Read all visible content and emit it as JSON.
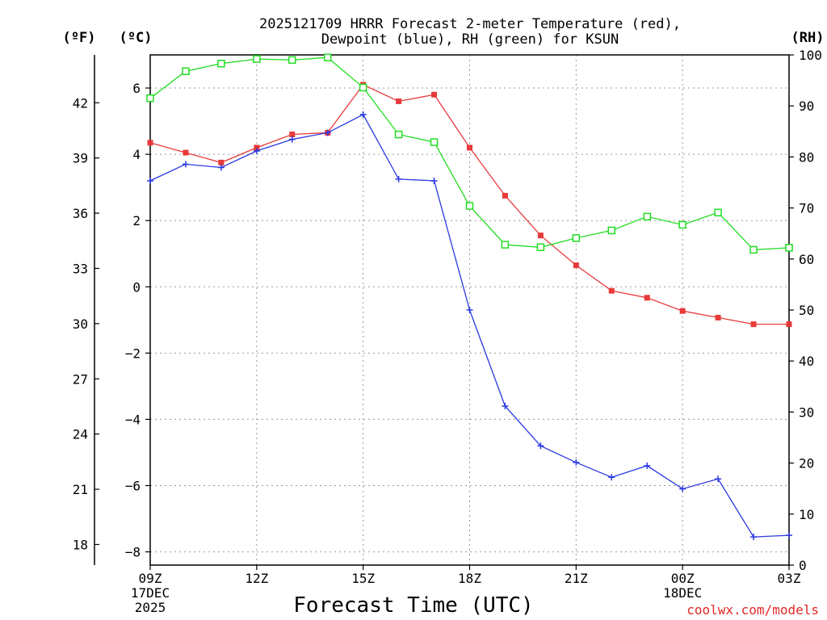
{
  "chart_data": {
    "type": "line",
    "title_line1": "2025121709 HRRR Forecast 2-meter Temperature (red),",
    "title_line2": "Dewpoint (blue), RH (green) for KSUN",
    "xlabel": "Forecast Time (UTC)",
    "credit": "coolwx.com/models",
    "unit_f": "(ºF)",
    "unit_c": "(ºC)",
    "unit_rh": "(RH)",
    "xlim": [
      0,
      18
    ],
    "ylim_c": [
      -8.4,
      7.0
    ],
    "ylim_rh": [
      0,
      100
    ],
    "x_ticks": [
      {
        "x": 0,
        "label": "09Z",
        "sub1": "17DEC",
        "sub2": "2025"
      },
      {
        "x": 3,
        "label": "12Z",
        "sub1": "",
        "sub2": ""
      },
      {
        "x": 6,
        "label": "15Z",
        "sub1": "",
        "sub2": ""
      },
      {
        "x": 9,
        "label": "18Z",
        "sub1": "",
        "sub2": ""
      },
      {
        "x": 12,
        "label": "21Z",
        "sub1": "",
        "sub2": ""
      },
      {
        "x": 15,
        "label": "00Z",
        "sub1": "18DEC",
        "sub2": ""
      },
      {
        "x": 18,
        "label": "03Z",
        "sub1": "",
        "sub2": ""
      }
    ],
    "y_ticks_c": [
      {
        "v": 6,
        "label": "6"
      },
      {
        "v": 4,
        "label": "4"
      },
      {
        "v": 2,
        "label": "2"
      },
      {
        "v": 0,
        "label": "0"
      },
      {
        "v": -2,
        "label": "−2"
      },
      {
        "v": -4,
        "label": "−4"
      },
      {
        "v": -6,
        "label": "−6"
      },
      {
        "v": -8,
        "label": "−8"
      }
    ],
    "y_ticks_f": [
      {
        "v": 42,
        "label": "42"
      },
      {
        "v": 39,
        "label": "39"
      },
      {
        "v": 36,
        "label": "36"
      },
      {
        "v": 33,
        "label": "33"
      },
      {
        "v": 30,
        "label": "30"
      },
      {
        "v": 27,
        "label": "27"
      },
      {
        "v": 24,
        "label": "24"
      },
      {
        "v": 21,
        "label": "21"
      },
      {
        "v": 18,
        "label": "18"
      }
    ],
    "y_ticks_rh": [
      {
        "v": 100,
        "label": "100"
      },
      {
        "v": 90,
        "label": "90"
      },
      {
        "v": 80,
        "label": "80"
      },
      {
        "v": 70,
        "label": "70"
      },
      {
        "v": 60,
        "label": "60"
      },
      {
        "v": 50,
        "label": "50"
      },
      {
        "v": 40,
        "label": "40"
      },
      {
        "v": 30,
        "label": "30"
      },
      {
        "v": 20,
        "label": "20"
      },
      {
        "v": 10,
        "label": "10"
      },
      {
        "v": 0,
        "label": "0"
      }
    ],
    "x": [
      0,
      1,
      2,
      3,
      4,
      5,
      6,
      7,
      8,
      9,
      10,
      11,
      12,
      13,
      14,
      15,
      16,
      17,
      18
    ],
    "series": [
      {
        "name": "Temperature",
        "axis": "c",
        "color": "#e83a3a",
        "marker": "filled-square",
        "values": [
          4.35,
          4.05,
          3.75,
          4.2,
          4.6,
          4.65,
          6.1,
          5.6,
          5.8,
          4.2,
          2.75,
          1.55,
          0.65,
          -0.12,
          -0.33,
          -0.73,
          -0.93,
          -1.13,
          -1.13
        ]
      },
      {
        "name": "Dewpoint",
        "axis": "c",
        "color": "#2a3ae0",
        "marker": "plus",
        "values": [
          3.2,
          3.7,
          3.6,
          4.1,
          4.45,
          4.65,
          5.2,
          3.25,
          3.2,
          -0.7,
          -3.6,
          -4.8,
          -5.3,
          -5.75,
          -5.4,
          -6.1,
          -5.8,
          -7.55,
          -7.5
        ]
      },
      {
        "name": "RH",
        "axis": "rh",
        "color": "#22dd22",
        "marker": "open-square",
        "values": [
          91.5,
          96.8,
          98.3,
          99.2,
          99.0,
          99.5,
          93.6,
          84.4,
          82.9,
          70.4,
          62.8,
          62.3,
          64.1,
          65.6,
          68.3,
          66.7,
          69.1,
          61.8,
          62.2
        ]
      }
    ]
  }
}
